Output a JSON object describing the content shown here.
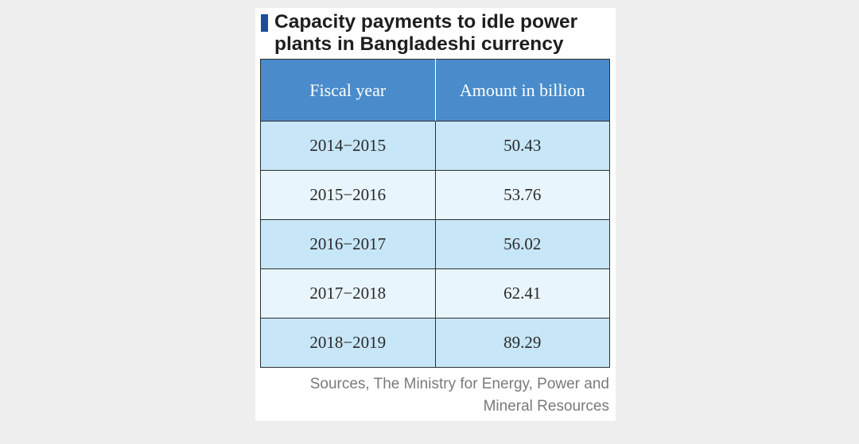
{
  "title": "Capacity payments to idle power plants in Bangladeshi currency",
  "source": "Sources, The Ministry for Energy, Power and Mineral Resources",
  "colors": {
    "header_bg": "#4a8ccb",
    "row_dark": "#c7e6f7",
    "row_light": "#e9f5fc",
    "title_marker": "#1a4e9a"
  },
  "chart_data": {
    "type": "table",
    "title": "Capacity payments to idle power plants in Bangladeshi currency",
    "columns": [
      "Fiscal year",
      "Amount in billion"
    ],
    "rows": [
      [
        "2014−2015",
        "50.43"
      ],
      [
        "2015−2016",
        "53.76"
      ],
      [
        "2016−2017",
        "56.02"
      ],
      [
        "2017−2018",
        "62.41"
      ],
      [
        "2018−2019",
        "89.29"
      ]
    ],
    "categories": [
      "2014−2015",
      "2015−2016",
      "2016−2017",
      "2017−2018",
      "2018−2019"
    ],
    "values": [
      50.43,
      53.76,
      56.02,
      62.41,
      89.29
    ]
  }
}
